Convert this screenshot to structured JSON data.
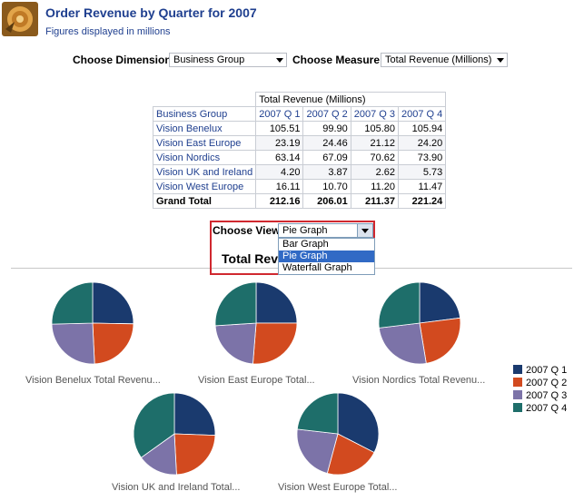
{
  "header": {
    "title": "Order Revenue by Quarter for 2007",
    "subtitle": "Figures displayed in millions"
  },
  "prompts": {
    "dimension_label": "Choose Dimension",
    "dimension_value": "Business Group",
    "measure_label": "Choose Measure",
    "measure_value": "Total Revenue (Millions)"
  },
  "table": {
    "measure_header": "Total Revenue (Millions)",
    "row_header": "Business Group",
    "columns": [
      "2007 Q 1",
      "2007 Q 2",
      "2007 Q 3",
      "2007 Q 4"
    ],
    "rows": [
      {
        "label": "Vision Benelux",
        "values": [
          "105.51",
          "99.90",
          "105.80",
          "105.94"
        ]
      },
      {
        "label": "Vision East Europe",
        "values": [
          "23.19",
          "24.46",
          "21.12",
          "24.20"
        ]
      },
      {
        "label": "Vision Nordics",
        "values": [
          "63.14",
          "67.09",
          "70.62",
          "73.90"
        ]
      },
      {
        "label": "Vision UK and Ireland",
        "values": [
          "4.20",
          "3.87",
          "2.62",
          "5.73"
        ]
      },
      {
        "label": "Vision West Europe",
        "values": [
          "16.11",
          "10.70",
          "11.20",
          "11.47"
        ]
      }
    ],
    "total": {
      "label": "Grand Total",
      "values": [
        "212.16",
        "206.01",
        "211.37",
        "221.24"
      ]
    }
  },
  "view": {
    "label": "Choose View",
    "selected": "Pie Graph",
    "options": [
      "Bar Graph",
      "Pie Graph",
      "Waterfall Graph"
    ],
    "selected_index": 1
  },
  "chart_title_visible": "Total Reve",
  "colors": {
    "q1": "#1a3a6e",
    "q2": "#d24a1f",
    "q3": "#7c73a8",
    "q4": "#1e6e6a"
  },
  "chart_data": {
    "type": "pie",
    "series_names": [
      "2007 Q 1",
      "2007 Q 2",
      "2007 Q 3",
      "2007 Q 4"
    ],
    "pies": [
      {
        "label": "Vision Benelux Total Revenu...",
        "values": [
          105.51,
          99.9,
          105.8,
          105.94
        ]
      },
      {
        "label": "Vision East Europe Total...",
        "values": [
          23.19,
          24.46,
          21.12,
          24.2
        ]
      },
      {
        "label": "Vision Nordics Total Revenu...",
        "values": [
          63.14,
          67.09,
          70.62,
          73.9
        ]
      },
      {
        "label": "Vision UK and Ireland Total...",
        "values": [
          4.2,
          3.87,
          2.62,
          5.73
        ]
      },
      {
        "label": "Vision West Europe Total...",
        "values": [
          16.11,
          10.7,
          11.2,
          11.47
        ]
      }
    ],
    "legend": [
      "2007 Q 1",
      "2007 Q 2",
      "2007 Q 3",
      "2007 Q 4"
    ],
    "legend_position": "right"
  }
}
